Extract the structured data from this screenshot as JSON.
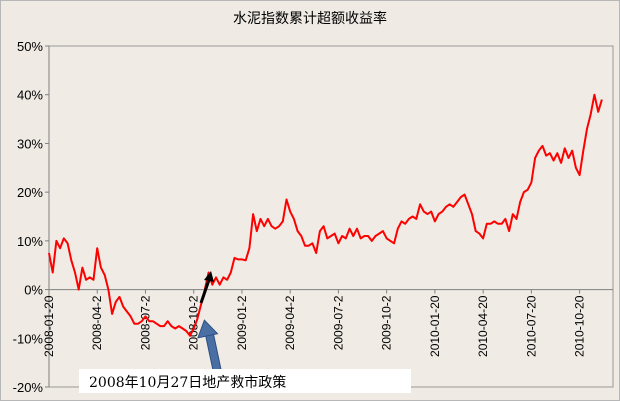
{
  "chart_data": {
    "type": "line",
    "title": "水泥指数累计超额收益率",
    "xlabel": "",
    "ylabel": "",
    "ylim": [
      -20,
      50
    ],
    "yticks": [
      "50%",
      "40%",
      "30%",
      "20%",
      "10%",
      "0%",
      "-10%",
      "-20%"
    ],
    "ytick_values": [
      50,
      40,
      30,
      20,
      10,
      0,
      -10,
      -20
    ],
    "grid": "none",
    "legend": "none",
    "x_tick_labels": [
      {
        "label": "2008-01-20",
        "t": 0
      },
      {
        "label": "2008-04-2",
        "t": 13
      },
      {
        "label": "2008-07-2",
        "t": 26
      },
      {
        "label": "2008-10-2",
        "t": 39
      },
      {
        "label": "2009-01-2",
        "t": 52
      },
      {
        "label": "2009-04-2",
        "t": 65
      },
      {
        "label": "2009-07-2",
        "t": 78
      },
      {
        "label": "2009-10-2",
        "t": 91
      },
      {
        "label": "2010-01-20",
        "t": 104
      },
      {
        "label": "2010-04-20",
        "t": 117
      },
      {
        "label": "2010-07-20",
        "t": 130
      },
      {
        "label": "2010-10-20",
        "t": 143
      }
    ],
    "x_range": [
      0,
      152
    ],
    "series": [
      {
        "color": "#ff0000",
        "points": [
          [
            0,
            7.5
          ],
          [
            1,
            3.5
          ],
          [
            2,
            10
          ],
          [
            3,
            8.5
          ],
          [
            4,
            10.5
          ],
          [
            5,
            9.5
          ],
          [
            6,
            6
          ],
          [
            7,
            3.5
          ],
          [
            8,
            0
          ],
          [
            9,
            4.5
          ],
          [
            10,
            2
          ],
          [
            11,
            2.5
          ],
          [
            12,
            2
          ],
          [
            13,
            8.5
          ],
          [
            14,
            4.5
          ],
          [
            15,
            3
          ],
          [
            16,
            0
          ],
          [
            17,
            -5
          ],
          [
            18,
            -2.5
          ],
          [
            19,
            -1.5
          ],
          [
            20,
            -3.5
          ],
          [
            21,
            -4.5
          ],
          [
            22,
            -5.5
          ],
          [
            23,
            -7
          ],
          [
            24,
            -7
          ],
          [
            25,
            -6.5
          ],
          [
            26,
            -5.5
          ],
          [
            27,
            -6.5
          ],
          [
            28,
            -6.5
          ],
          [
            29,
            -7
          ],
          [
            30,
            -7.5
          ],
          [
            31,
            -7.5
          ],
          [
            32,
            -6.5
          ],
          [
            33,
            -7.5
          ],
          [
            34,
            -8
          ],
          [
            35,
            -7.5
          ],
          [
            36,
            -8
          ],
          [
            37,
            -8.5
          ],
          [
            38,
            -9.5
          ],
          [
            39,
            -8
          ],
          [
            40,
            -6
          ],
          [
            41,
            -3
          ],
          [
            42,
            0
          ],
          [
            43,
            3.5
          ],
          [
            44,
            1
          ],
          [
            45,
            2.5
          ],
          [
            46,
            1
          ],
          [
            47,
            2.5
          ],
          [
            48,
            2
          ],
          [
            49,
            3.5
          ],
          [
            50,
            6.5
          ],
          [
            51,
            6.2
          ],
          [
            52,
            6.2
          ],
          [
            53,
            6
          ],
          [
            54,
            8.5
          ],
          [
            55,
            15.5
          ],
          [
            56,
            12
          ],
          [
            57,
            14.5
          ],
          [
            58,
            13
          ],
          [
            59,
            14.5
          ],
          [
            60,
            13
          ],
          [
            61,
            12.5
          ],
          [
            62,
            13
          ],
          [
            63,
            14
          ],
          [
            64,
            18.5
          ],
          [
            65,
            16
          ],
          [
            66,
            14.5
          ],
          [
            67,
            12
          ],
          [
            68,
            11
          ],
          [
            69,
            9
          ],
          [
            70,
            9
          ],
          [
            71,
            9.5
          ],
          [
            72,
            7.5
          ],
          [
            73,
            12
          ],
          [
            74,
            13
          ],
          [
            75,
            10.5
          ],
          [
            76,
            11
          ],
          [
            77,
            11.5
          ],
          [
            78,
            9.5
          ],
          [
            79,
            11
          ],
          [
            80,
            10.5
          ],
          [
            81,
            12.5
          ],
          [
            82,
            11
          ],
          [
            83,
            12.5
          ],
          [
            84,
            10.5
          ],
          [
            85,
            11
          ],
          [
            86,
            11
          ],
          [
            87,
            10
          ],
          [
            88,
            11
          ],
          [
            89,
            11.5
          ],
          [
            90,
            12
          ],
          [
            91,
            10.5
          ],
          [
            92,
            10
          ],
          [
            93,
            9.5
          ],
          [
            94,
            12.5
          ],
          [
            95,
            14
          ],
          [
            96,
            13.5
          ],
          [
            97,
            14.5
          ],
          [
            98,
            15
          ],
          [
            99,
            14.5
          ],
          [
            100,
            17.5
          ],
          [
            101,
            16
          ],
          [
            102,
            15.5
          ],
          [
            103,
            16
          ],
          [
            104,
            14
          ],
          [
            105,
            15.5
          ],
          [
            106,
            16
          ],
          [
            107,
            17
          ],
          [
            108,
            17.5
          ],
          [
            109,
            17
          ],
          [
            110,
            18
          ],
          [
            111,
            19
          ],
          [
            112,
            19.5
          ],
          [
            113,
            17.5
          ],
          [
            114,
            15.5
          ],
          [
            115,
            12
          ],
          [
            116,
            11.5
          ],
          [
            117,
            10.5
          ],
          [
            118,
            13.5
          ],
          [
            119,
            13.5
          ],
          [
            120,
            14
          ],
          [
            121,
            13.5
          ],
          [
            122,
            13.5
          ],
          [
            123,
            14.5
          ],
          [
            124,
            12
          ],
          [
            125,
            15.5
          ],
          [
            126,
            14.5
          ],
          [
            127,
            18
          ],
          [
            128,
            20
          ],
          [
            129,
            20.5
          ],
          [
            130,
            22
          ],
          [
            131,
            27
          ],
          [
            132,
            28.5
          ],
          [
            133,
            29.5
          ],
          [
            134,
            27.5
          ],
          [
            135,
            28
          ],
          [
            136,
            26.5
          ],
          [
            137,
            28
          ],
          [
            138,
            26
          ],
          [
            139,
            29
          ],
          [
            140,
            27
          ],
          [
            141,
            28.5
          ],
          [
            142,
            25
          ],
          [
            143,
            23.5
          ],
          [
            144,
            28.5
          ],
          [
            145,
            33
          ],
          [
            146,
            36
          ],
          [
            147,
            40
          ],
          [
            148,
            36.5
          ],
          [
            149,
            39
          ]
        ]
      }
    ],
    "annotations": [
      {
        "text": "2008年10月27日地产救市政策",
        "arrow_color_up": "#000000",
        "arrow_color_pointer": "#4a6fa5"
      }
    ]
  }
}
